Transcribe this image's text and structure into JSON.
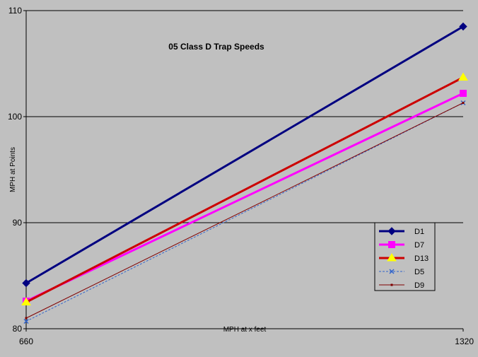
{
  "chart_data": {
    "type": "line",
    "title": "05 Class D Trap Speeds",
    "xlabel": "MPH at x feet",
    "ylabel": "MPH at Points",
    "x": [
      660,
      1320
    ],
    "x_tick_labels": [
      "660",
      "1320"
    ],
    "ylim": [
      80,
      110
    ],
    "y_ticks": [
      80,
      90,
      100,
      110
    ],
    "y_tick_labels": [
      "80",
      "90",
      "100",
      "110"
    ],
    "grid": "horizontal",
    "legend_position": "right",
    "series": [
      {
        "name": "D1",
        "values": [
          84.3,
          108.5
        ],
        "color": "#000080",
        "marker": "diamond",
        "style": "solid-thick"
      },
      {
        "name": "D7",
        "values": [
          82.6,
          102.2
        ],
        "color": "#ff00ff",
        "marker": "square",
        "style": "solid-thick"
      },
      {
        "name": "D13",
        "values": [
          82.5,
          103.7
        ],
        "color": "#cc0000",
        "marker": "triangle",
        "style": "solid-thick"
      },
      {
        "name": "D5",
        "values": [
          80.7,
          101.3
        ],
        "color": "#3366cc",
        "marker": "x",
        "style": "dashed"
      },
      {
        "name": "D9",
        "values": [
          81.0,
          101.3
        ],
        "color": "#800000",
        "marker": "dot",
        "style": "solid-thin"
      }
    ],
    "colors": {
      "background": "#c0c0c0",
      "grid": "#000000",
      "text": "#000000",
      "legend_bg": "#c0c0c0"
    }
  }
}
